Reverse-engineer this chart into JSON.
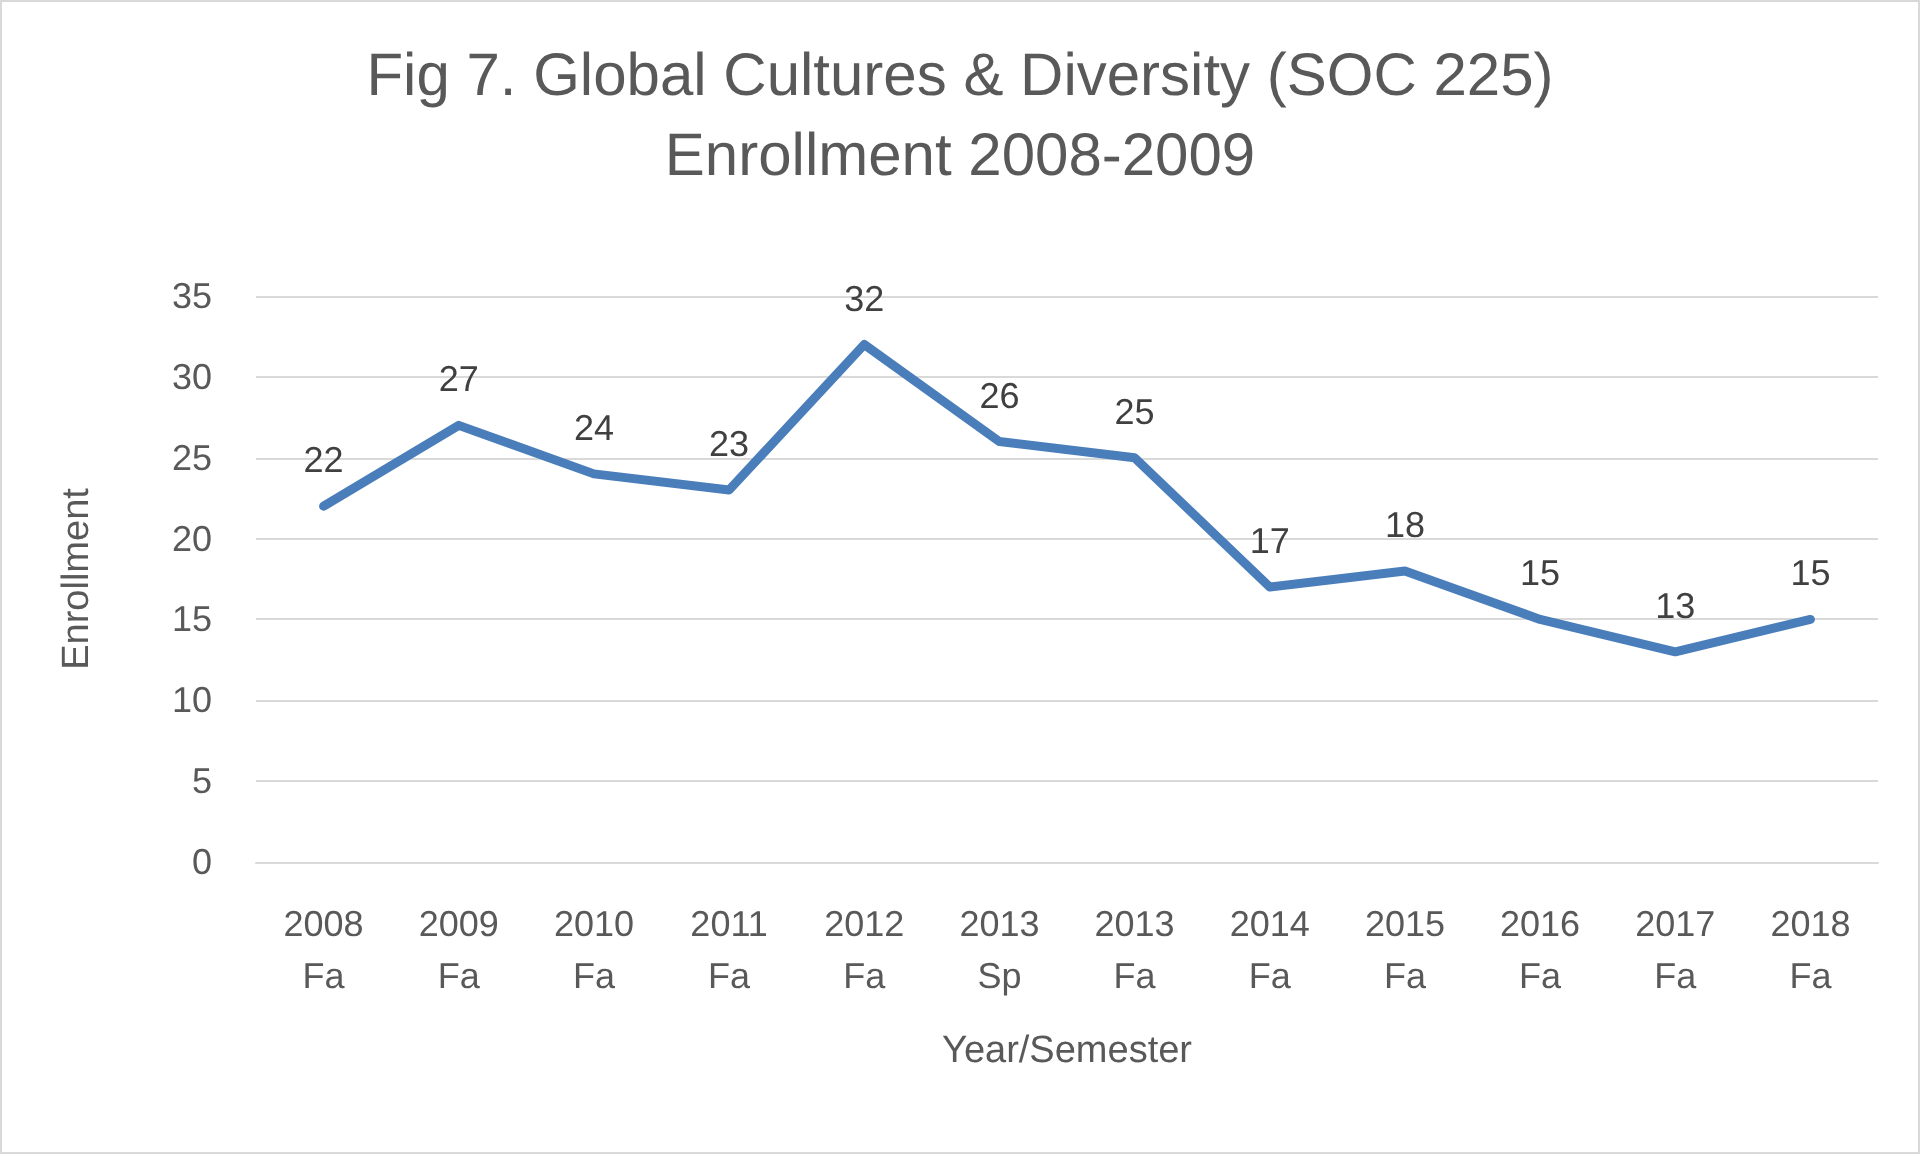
{
  "chart_data": {
    "type": "line",
    "title": "Fig 7. Global Cultures & Diversity (SOC 225)\nEnrollment 2008-2009",
    "xlabel": "Year/Semester",
    "ylabel": "Enrollment",
    "categories": [
      "2008\nFa",
      "2009\nFa",
      "2010\nFa",
      "2011\nFa",
      "2012\nFa",
      "2013\nSp",
      "2013\nFa",
      "2014\nFa",
      "2015\nFa",
      "2016\nFa",
      "2017\nFa",
      "2018\nFa"
    ],
    "series": [
      {
        "color": "#4a7ebb",
        "values": [
          22,
          27,
          24,
          23,
          32,
          26,
          25,
          17,
          18,
          15,
          13,
          15
        ]
      }
    ],
    "ylim": [
      0,
      35
    ],
    "yticks": [
      0,
      5,
      10,
      15,
      20,
      25,
      30,
      35
    ],
    "grid": "y",
    "data_labels": true,
    "marker": "none",
    "line_style": "solid"
  }
}
